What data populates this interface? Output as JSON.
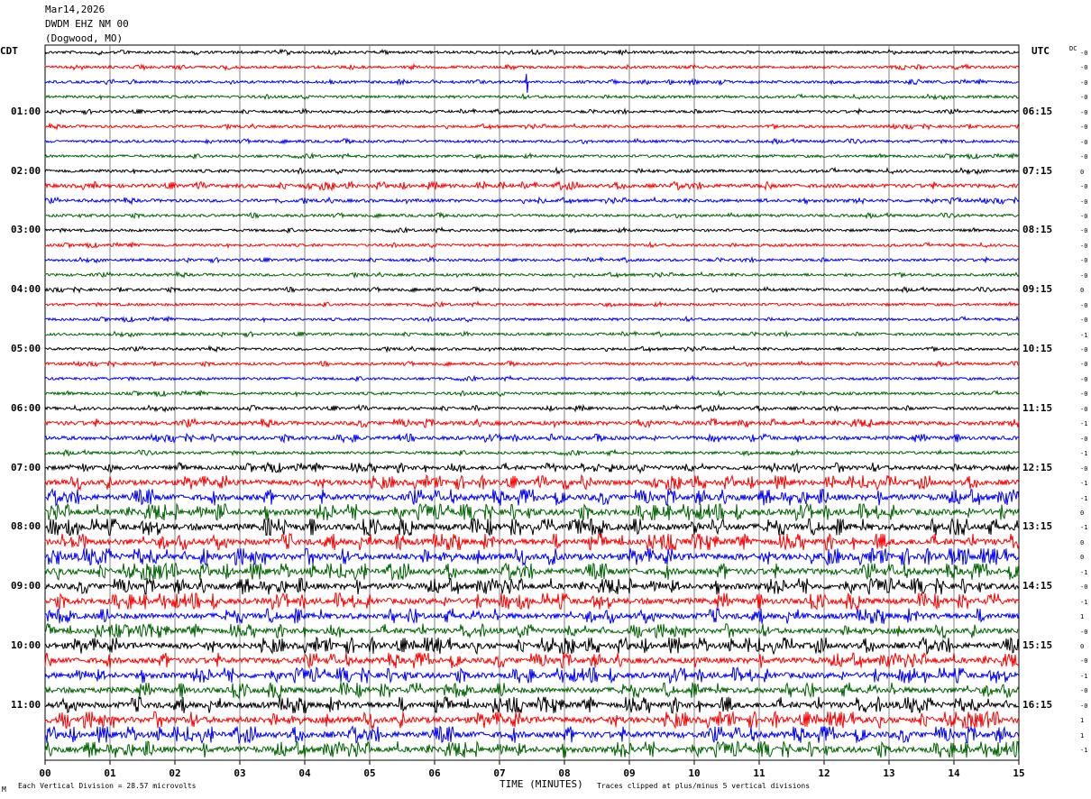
{
  "header": {
    "date": "Mar14,2026",
    "station": "DWDM EHZ NM 00",
    "location": "(Dogwood, MO)"
  },
  "left_timezone": "CDT",
  "right_timezone": "UTC",
  "dc_label": "DC",
  "left_hour_labels": [
    "01:00",
    "02:00",
    "03:00",
    "04:00",
    "05:00",
    "06:00",
    "07:00",
    "08:00",
    "09:00",
    "10:00",
    "11:00"
  ],
  "right_hour_labels": [
    "06:15",
    "07:15",
    "08:15",
    "09:15",
    "10:15",
    "11:15",
    "12:15",
    "13:15",
    "14:15",
    "15:15",
    "16:15"
  ],
  "dc_offsets": [
    "-0",
    "-0",
    "-0",
    "-0",
    "-0",
    "-0",
    "-0",
    "-0",
    "0",
    "-0",
    "-0",
    "-0",
    "-0",
    "-0",
    "-0",
    "-0",
    "0",
    "-0",
    "-0",
    "-1",
    "-0",
    "-0",
    "-0",
    "-0",
    "-0",
    "-1",
    "-0",
    "-1",
    "-0",
    "-1",
    "-1",
    "0",
    "-1",
    "0",
    "0",
    "-1",
    "-0",
    "-1",
    "1",
    "-0",
    "0",
    "-0",
    "-1",
    "-0",
    "-0",
    "1",
    "1",
    "-1"
  ],
  "footer": {
    "vertical_division": "Each Vertical Division =   28.57 microvolts",
    "xlabel": "TIME (MINUTES)",
    "clipping": "Traces clipped at plus/minus 5 vertical divisions",
    "corner_mark": "M"
  },
  "chart_data": {
    "type": "line",
    "xlabel": "TIME (MINUTES)",
    "x_ticks": [
      "00",
      "01",
      "02",
      "03",
      "04",
      "05",
      "06",
      "07",
      "08",
      "09",
      "10",
      "11",
      "12",
      "13",
      "14",
      "15"
    ],
    "xlim": [
      0,
      15
    ],
    "trace_count": 48,
    "trace_colors": [
      "#000000",
      "#ff0000",
      "#0000ff",
      "#006400"
    ],
    "grid": true,
    "activity_by_trace": [
      1,
      1,
      1,
      1,
      1,
      1,
      1,
      1,
      1.3,
      2,
      1.4,
      1,
      1,
      1,
      1,
      1,
      1,
      1,
      1,
      1,
      1,
      1,
      1,
      1.1,
      1.3,
      2.2,
      2,
      1.2,
      2.5,
      3.5,
      4,
      4.2,
      4.5,
      4.2,
      4.5,
      4.2,
      4,
      4,
      3.8,
      3.5,
      4,
      3.8,
      3.8,
      3.8,
      4,
      4.2,
      4.2,
      4
    ]
  }
}
